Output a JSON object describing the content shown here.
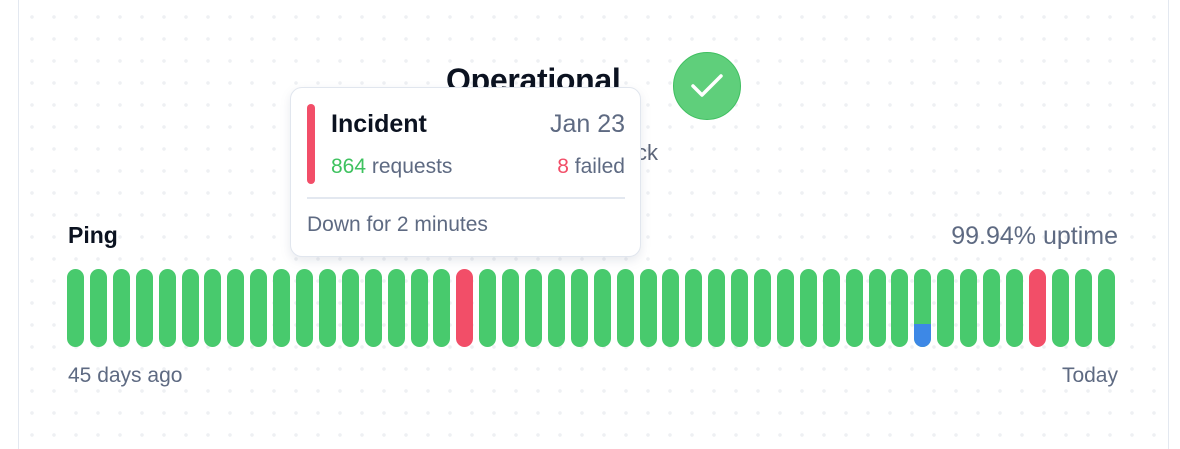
{
  "status": {
    "title": "Operational",
    "subtitle_visible": "ck",
    "icon": "check-icon",
    "color": "#5fcf7b"
  },
  "tooltip": {
    "title": "Incident",
    "date": "Jan 23",
    "requests_count": "864",
    "requests_label": " requests",
    "failed_count": "8",
    "failed_label": " failed",
    "footer": "Down for 2 minutes"
  },
  "monitor": {
    "name": "Ping",
    "uptime": "99.94% uptime",
    "start_label": "45 days ago",
    "end_label": "Today",
    "colors": {
      "up": "#48ca6d",
      "down": "#f24e68",
      "partial": "#3d88e6"
    },
    "days": [
      "up",
      "up",
      "up",
      "up",
      "up",
      "up",
      "up",
      "up",
      "up",
      "up",
      "up",
      "up",
      "up",
      "up",
      "up",
      "up",
      "up",
      "down",
      "up",
      "up",
      "up",
      "up",
      "up",
      "up",
      "up",
      "up",
      "up",
      "up",
      "up",
      "up",
      "up",
      "up",
      "up",
      "up",
      "up",
      "up",
      "up",
      "partial",
      "up",
      "up",
      "up",
      "up",
      "down",
      "up",
      "up",
      "up"
    ],
    "partial_fraction": 0.3
  }
}
